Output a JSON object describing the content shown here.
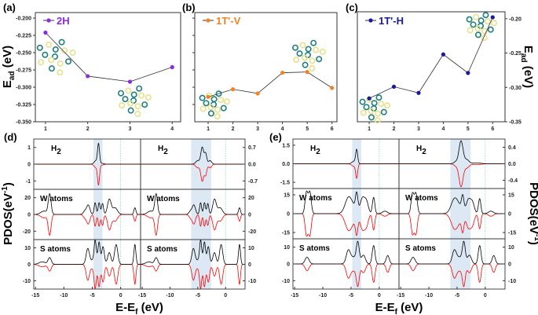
{
  "chart_data": [
    {
      "panel": "(a)",
      "type": "line",
      "legend": "2H",
      "color": "#8b2be2",
      "x": [
        1,
        2,
        3,
        4
      ],
      "y": [
        -0.221,
        -0.284,
        -0.292,
        -0.271
      ],
      "xticks": [
        1,
        2,
        3,
        4
      ],
      "yticks": [
        -0.2,
        -0.225,
        -0.25,
        -0.275,
        -0.3,
        -0.325,
        -0.35
      ],
      "ytick_labels": [
        "-0.200",
        "-0.225",
        "-0.250",
        "-0.275",
        "-0.300",
        "-0.325",
        "-0.350"
      ],
      "xlim": [
        0.76,
        4.2
      ],
      "ylim": [
        -0.35,
        -0.192
      ],
      "ylabel": {
        "main": "E",
        "sub": "ad",
        "rest": " (eV)"
      },
      "ylabel_side": "left"
    },
    {
      "panel": "(b)",
      "type": "line",
      "legend": "1T'-V",
      "color": "#f58220",
      "x": [
        1,
        2,
        3,
        4,
        5,
        6
      ],
      "y": [
        -0.314,
        -0.303,
        -0.309,
        -0.279,
        -0.278,
        -0.301
      ],
      "xticks": [
        1,
        2,
        3,
        4,
        5,
        6
      ],
      "yticks": [
        -0.2,
        -0.225,
        -0.25,
        -0.275,
        -0.3,
        -0.325
      ],
      "ytick_labels": [],
      "xlim": [
        0.46,
        6.2
      ],
      "ylim": [
        -0.35,
        -0.192
      ]
    },
    {
      "panel": "(c)",
      "type": "line",
      "legend": "1T'-H",
      "color": "#1a1aa0",
      "x": [
        1,
        2,
        3,
        4,
        5,
        6
      ],
      "y": [
        -0.316,
        -0.299,
        -0.308,
        -0.252,
        -0.279,
        -0.198
      ],
      "xticks": [
        1,
        2,
        3,
        4,
        5,
        6
      ],
      "yticks": [
        -0.2,
        -0.25,
        -0.3,
        -0.35
      ],
      "ytick_labels": [
        "-0.20",
        "-0.25",
        "-0.30",
        "-0.35"
      ],
      "xlim": [
        0.52,
        6.5
      ],
      "ylim": [
        -0.35,
        -0.19
      ],
      "ylabel": {
        "main": "E",
        "sub": "ad",
        "rest": " (eV)"
      },
      "ylabel_side": "right"
    },
    {
      "panel": "(d)",
      "type": "line",
      "xlabel": {
        "main": "E-E",
        "sub": "f",
        "rest": " (eV)"
      },
      "ylabel": {
        "main": "PDOS(eV",
        "sup": "-1",
        "rest": ")"
      },
      "ylabel_side": "left",
      "xticks": [
        -15,
        -10,
        -5,
        0
      ],
      "xtick_labels": [
        "-15",
        "-10",
        "-5",
        "0"
      ],
      "xlim": [
        -15.3,
        3.5
      ],
      "spin_up_color": "#000000",
      "spin_down_color": "#ff0000",
      "highlight_color": "#dce8f4",
      "rows": [
        {
          "label": {
            "main": "H",
            "sub": "2"
          },
          "left": {
            "ylim": [
              -1.5,
              1.5
            ],
            "yticks": [
              -1,
              0,
              1
            ],
            "ytick_labels": [
              "-1",
              "0",
              "1"
            ],
            "highlight": [
              -4.8,
              -3.2
            ],
            "peaks": [
              [
                -3.9,
                1.2,
                0.25
              ],
              [
                -4.4,
                0.2,
                0.4
              ],
              [
                -3.3,
                0.05,
                0.4
              ]
            ]
          },
          "right": {
            "ylim": [
              -1.05,
              1.05
            ],
            "yticks": [
              -0.7,
              0,
              0.7
            ],
            "ytick_labels": [
              "-0.7",
              "0.0",
              "0.7"
            ],
            "highlight": [
              -6.2,
              -2.6
            ],
            "peaks": [
              [
                -4.2,
                0.7,
                0.35
              ],
              [
                -3.6,
                0.45,
                0.3
              ],
              [
                -5,
                0.15,
                0.5
              ],
              [
                -2.8,
                0.15,
                0.4
              ]
            ]
          }
        },
        {
          "label": {
            "main": "W atoms"
          },
          "left": {
            "ylim": [
              -30,
              30
            ],
            "yticks": [
              -20,
              0,
              20
            ],
            "ytick_labels": [
              "-20",
              "0",
              "20"
            ],
            "highlight": [
              -4.8,
              -3.2
            ],
            "peaks": [
              [
                -12.5,
                24,
                0.35
              ],
              [
                -13.5,
                4,
                0.8
              ],
              [
                -5.7,
                11,
                0.4
              ],
              [
                -4.5,
                14,
                0.25
              ],
              [
                -3.8,
                14,
                0.25
              ],
              [
                -3.2,
                13,
                0.25
              ],
              [
                -2,
                18,
                0.45
              ],
              [
                -1,
                8,
                0.6
              ],
              [
                2.5,
                8,
                0.25
              ],
              [
                -6.3,
                4,
                0.4
              ]
            ]
          },
          "right": {
            "ylim": [
              -30,
              30
            ],
            "yticks": [
              -20,
              0,
              20
            ],
            "ytick_labels": [
              "-20",
              "0",
              "20"
            ],
            "highlight": [
              -6.2,
              -2.6
            ],
            "peaks": [
              [
                -12.5,
                24,
                0.35
              ],
              [
                -13.5,
                4,
                0.8
              ],
              [
                -5.7,
                11,
                0.4
              ],
              [
                -4.5,
                14,
                0.25
              ],
              [
                -3.8,
                14,
                0.25
              ],
              [
                -3.2,
                13,
                0.25
              ],
              [
                -2,
                18,
                0.45
              ],
              [
                -1,
                8,
                0.6
              ],
              [
                2.5,
                8,
                0.25
              ],
              [
                -6.3,
                4,
                0.4
              ]
            ]
          }
        },
        {
          "label": {
            "main": "S atoms"
          },
          "left": {
            "ylim": [
              -15,
              15
            ],
            "yticks": [
              -10,
              0,
              10
            ],
            "ytick_labels": [
              "-10",
              "0",
              "10"
            ],
            "highlight": [
              -4.8,
              -3.2
            ],
            "peaks": [
              [
                -12.5,
                4,
                0.4
              ],
              [
                -13.8,
                1.5,
                0.8
              ],
              [
                -5.8,
                9,
                0.4
              ],
              [
                -4.5,
                11,
                0.25
              ],
              [
                -3.8,
                10,
                0.25
              ],
              [
                -3.1,
                9,
                0.3
              ],
              [
                -2,
                7,
                0.4
              ],
              [
                -0.8,
                12,
                0.4
              ],
              [
                2.5,
                12,
                0.25
              ],
              [
                -4.2,
                4,
                1.2
              ]
            ]
          },
          "right": {
            "ylim": [
              -15,
              15
            ],
            "yticks": [
              -10,
              0,
              10
            ],
            "ytick_labels": [
              "-10",
              "0",
              "10"
            ],
            "highlight": [
              -6.2,
              -2.6
            ],
            "peaks": [
              [
                -12.5,
                4,
                0.4
              ],
              [
                -13.8,
                1.5,
                0.8
              ],
              [
                -5.8,
                9,
                0.4
              ],
              [
                -4.5,
                11,
                0.25
              ],
              [
                -3.8,
                10,
                0.25
              ],
              [
                -3.1,
                9,
                0.3
              ],
              [
                -2,
                7,
                0.4
              ],
              [
                -0.8,
                12,
                0.4
              ],
              [
                2.5,
                12,
                0.25
              ],
              [
                -4.2,
                4,
                1.2
              ]
            ]
          }
        }
      ]
    },
    {
      "panel": "(e)",
      "type": "line",
      "xlabel": {
        "main": "E-E",
        "sub": "f",
        "rest": " (eV)"
      },
      "ylabel": {
        "main": "PDOS(eV",
        "sup": "-1",
        "rest": ")"
      },
      "ylabel_side": "right",
      "xticks": [
        -15,
        -10,
        -5,
        0
      ],
      "xtick_labels": [
        "-15",
        "-10",
        "-5",
        "0"
      ],
      "xlim": [
        -15.3,
        3.5
      ],
      "spin_up_color": "#000000",
      "spin_down_color": "#ff0000",
      "highlight_color": "#dce8f4",
      "rows": [
        {
          "label": {
            "main": "H",
            "sub": "2"
          },
          "left": {
            "ylim": [
              -2,
              2
            ],
            "yticks": [
              -1.5,
              0,
              1.5
            ],
            "ytick_labels": [
              "-1.5",
              "0.0",
              "1.5"
            ],
            "highlight": [
              -4.8,
              -3.2
            ],
            "peaks": [
              [
                -4,
                1.1,
                0.25
              ],
              [
                -4.5,
                0.2,
                0.5
              ]
            ]
          },
          "right": {
            "ylim": [
              -0.6,
              0.6
            ],
            "yticks": [
              -0.4,
              0,
              0.4
            ],
            "ytick_labels": [
              "-0.4",
              "0.0",
              "0.4"
            ],
            "highlight": [
              -6.2,
              -2.6
            ],
            "peaks": [
              [
                -4.3,
                0.55,
                0.5
              ],
              [
                -3.3,
                0.1,
                0.6
              ],
              [
                -5.2,
                0.05,
                0.5
              ],
              [
                -1.5,
                0.02,
                1
              ]
            ]
          }
        },
        {
          "label": {
            "main": "W atoms"
          },
          "left": {
            "ylim": [
              -20,
              20
            ],
            "yticks": [
              -15,
              0,
              15
            ],
            "ytick_labels": [
              "-15",
              "0",
              "15"
            ],
            "highlight": [
              -4.8,
              -3.2
            ],
            "peaks": [
              [
                -12.9,
                17,
                0.35
              ],
              [
                -12.3,
                17,
                0.35
              ],
              [
                -5.5,
                9,
                0.8
              ],
              [
                -4,
                13,
                0.3
              ],
              [
                -3,
                11,
                0.5
              ],
              [
                -2.3,
                10,
                0.5
              ],
              [
                -1,
                13,
                0.3
              ],
              [
                -4.8,
                6,
                1.2
              ],
              [
                1,
                2,
                0.6
              ]
            ]
          },
          "right": {
            "ylim": [
              -20,
              20
            ],
            "yticks": [
              -15,
              0,
              15
            ],
            "ytick_labels": [
              "-15",
              "0",
              "15"
            ],
            "highlight": [
              -6.2,
              -2.6
            ],
            "peaks": [
              [
                -12.9,
                16,
                0.35
              ],
              [
                -12.3,
                16,
                0.35
              ],
              [
                -5.5,
                8,
                0.8
              ],
              [
                -4,
                11,
                0.3
              ],
              [
                -3,
                10,
                0.5
              ],
              [
                -2.3,
                9,
                0.5
              ],
              [
                -1,
                12,
                0.3
              ],
              [
                -4.8,
                6,
                1.2
              ],
              [
                1,
                2,
                0.6
              ]
            ]
          }
        },
        {
          "label": {
            "main": "S atoms"
          },
          "left": {
            "ylim": [
              -15,
              15
            ],
            "yticks": [
              -10,
              0,
              10
            ],
            "ytick_labels": [
              "-10",
              "0",
              "10"
            ],
            "highlight": [
              -4.8,
              -3.2
            ],
            "peaks": [
              [
                -12.8,
                4,
                0.5
              ],
              [
                -5.5,
                7,
                0.5
              ],
              [
                -3.8,
                11,
                0.35
              ],
              [
                -2.8,
                5,
                0.5
              ],
              [
                -1,
                11,
                0.35
              ],
              [
                1.5,
                5,
                0.4
              ],
              [
                -4.5,
                4,
                1
              ]
            ]
          },
          "right": {
            "ylim": [
              -15,
              15
            ],
            "yticks": [
              -10,
              0,
              10
            ],
            "ytick_labels": [
              "-10",
              "0",
              "10"
            ],
            "highlight": [
              -6.2,
              -2.6
            ],
            "peaks": [
              [
                -12.8,
                4,
                0.5
              ],
              [
                -5.5,
                7,
                0.5
              ],
              [
                -3.8,
                11,
                0.35
              ],
              [
                -2.8,
                5,
                0.5
              ],
              [
                -1,
                11,
                0.35
              ],
              [
                1.5,
                5,
                0.4
              ],
              [
                -4.5,
                4,
                1
              ]
            ]
          }
        }
      ]
    }
  ]
}
